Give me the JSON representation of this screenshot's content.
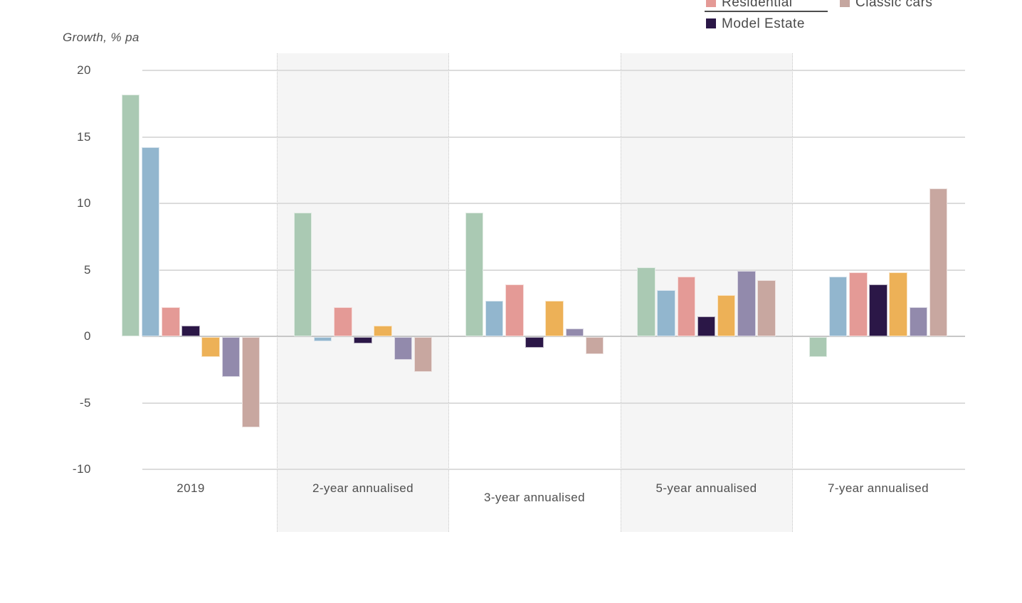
{
  "page": {
    "background": "#ffffff"
  },
  "legend": {
    "position": "top-right",
    "items": [
      {
        "label": "Residential",
        "color": "#e49a96",
        "underlined": true,
        "row": 0,
        "col": 0,
        "cut_off_top": true
      },
      {
        "label": "Classic cars",
        "color": "#c5a69f",
        "underlined": false,
        "row": 0,
        "col": 1,
        "cut_off_top": true
      },
      {
        "label": "Model Estate",
        "color": "#2b1747",
        "underlined": false,
        "row": 1,
        "col": 0,
        "cut_off_top": false
      }
    ]
  },
  "chart_data": {
    "type": "bar",
    "title": "",
    "ylabel": "Growth, % pa",
    "xlabel": "",
    "ylim": [
      -10,
      20
    ],
    "yticks": [
      20,
      15,
      10,
      5,
      0,
      -5,
      -10
    ],
    "grid": "horizontal",
    "legend_position": "top-right",
    "categories": [
      "2019",
      "2-year annualised",
      "3-year annualised",
      "5-year annualised",
      "7-year annualised"
    ],
    "shaded_category_indices": [
      1,
      3
    ],
    "series": [
      {
        "name": "",
        "color": "#aac9b3",
        "values": [
          18.2,
          9.3,
          9.3,
          5.2,
          -1.5
        ]
      },
      {
        "name": "",
        "color": "#92b6ce",
        "values": [
          14.2,
          -0.3,
          2.7,
          3.5,
          4.5
        ]
      },
      {
        "name": "Residential",
        "color": "#e49a96",
        "values": [
          2.2,
          2.2,
          3.9,
          4.5,
          4.8
        ]
      },
      {
        "name": "Model Estate",
        "color": "#2b1747",
        "values": [
          0.8,
          -0.5,
          -0.8,
          1.5,
          3.9
        ]
      },
      {
        "name": "",
        "color": "#edb157",
        "values": [
          -1.5,
          0.8,
          2.7,
          3.1,
          4.8
        ]
      },
      {
        "name": "",
        "color": "#928aac",
        "values": [
          -3.0,
          -1.7,
          0.6,
          4.9,
          2.2
        ]
      },
      {
        "name": "Classic cars",
        "color": "#c8a7a0",
        "values": [
          -6.8,
          -2.6,
          -1.3,
          4.2,
          11.1
        ]
      }
    ]
  }
}
